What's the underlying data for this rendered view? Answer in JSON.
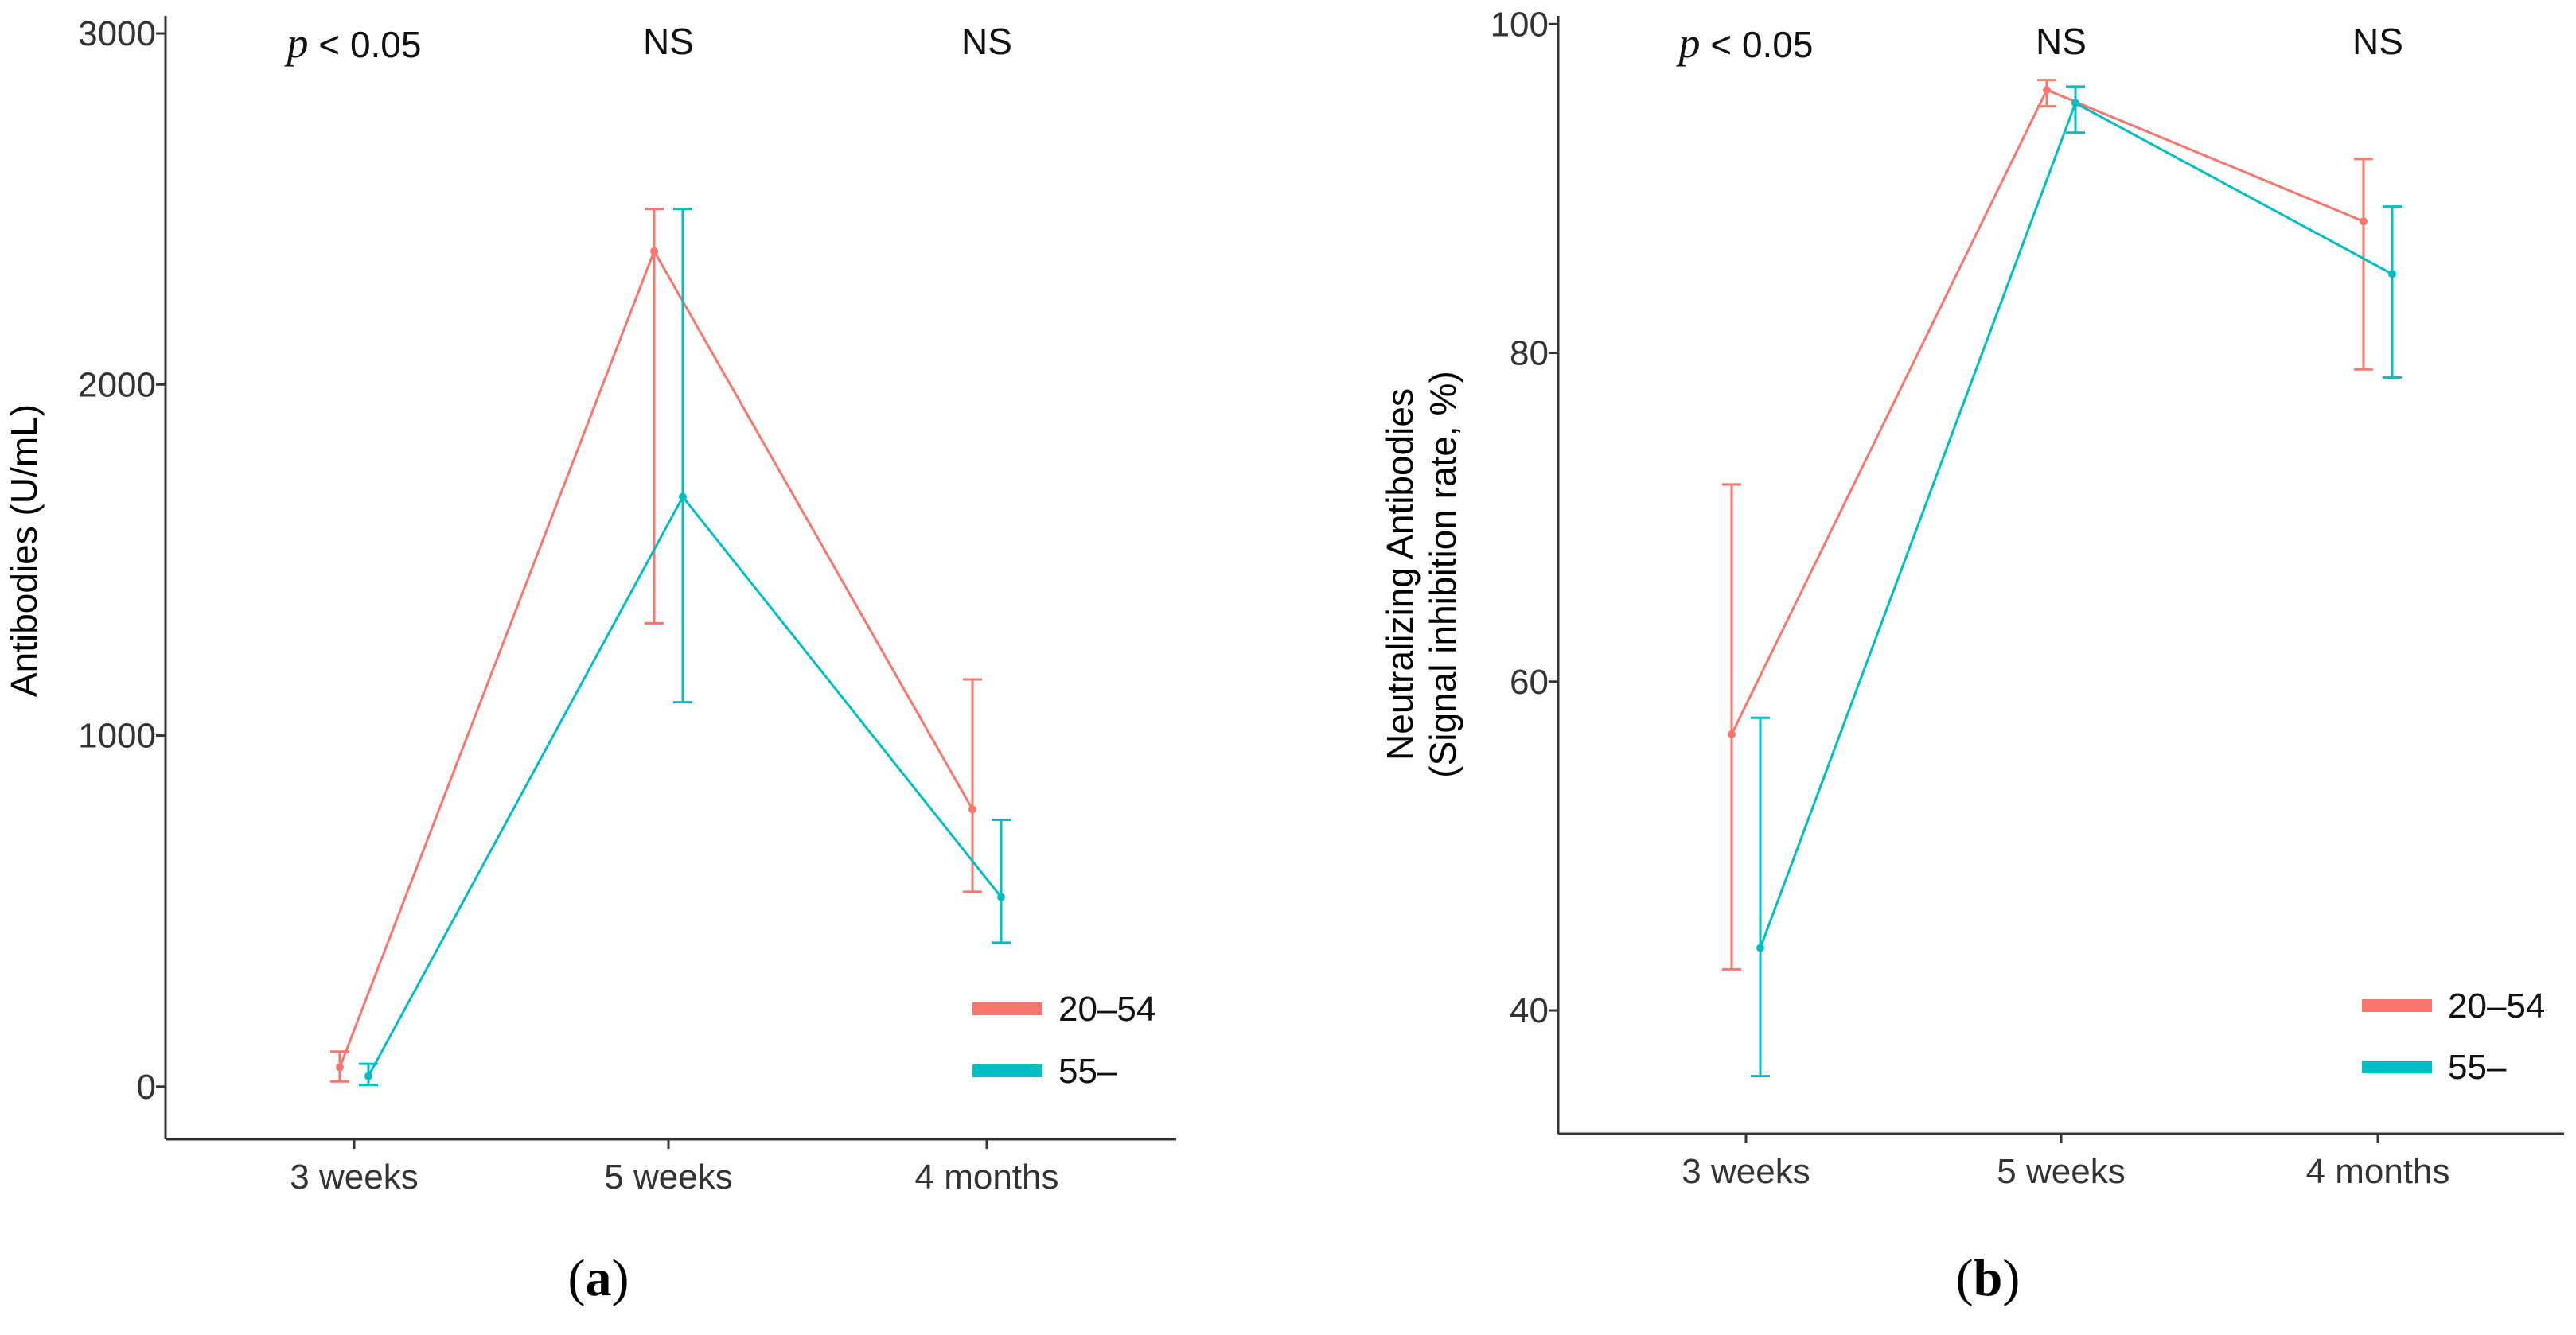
{
  "chart_data": [
    {
      "type": "line",
      "panel_label": "a",
      "title": "",
      "xlabel": "",
      "ylabel": "Antibodies (U/mL)",
      "categories": [
        "3 weeks",
        "5 weeks",
        "4 months"
      ],
      "ylim": [
        -150,
        3050
      ],
      "yticks": [
        0,
        1000,
        2000,
        3000
      ],
      "tick_labels": [
        "0",
        "1000",
        "2000",
        "3000"
      ],
      "grid": false,
      "legend_position": "bottom-right",
      "annotations": [
        {
          "category": "3 weeks",
          "p": "p",
          "rest": " < 0.05"
        },
        {
          "category": "5 weeks",
          "text": "NS"
        },
        {
          "category": "4 months",
          "text": "NS"
        }
      ],
      "series": [
        {
          "name": "20–54",
          "color": "#F8766D",
          "offset": -1,
          "values": [
            55,
            2380,
            790
          ],
          "lower": [
            15,
            1320,
            555
          ],
          "upper": [
            100,
            2500,
            1160
          ]
        },
        {
          "name": "55–",
          "color": "#00BFC4",
          "offset": 1,
          "values": [
            30,
            1680,
            540
          ],
          "lower": [
            5,
            1095,
            410
          ],
          "upper": [
            65,
            2500,
            760
          ]
        }
      ]
    },
    {
      "type": "line",
      "panel_label": "b",
      "title": "",
      "xlabel": "",
      "ylabel": "Neutralizing Antibodies",
      "ylabel2": "(Signal inhibition rate, %)",
      "categories": [
        "3 weeks",
        "5 weeks",
        "4 months"
      ],
      "ylim": [
        32.5,
        100.5
      ],
      "yticks": [
        40,
        60,
        80,
        100
      ],
      "tick_labels": [
        "40",
        "60",
        "80",
        "100"
      ],
      "grid": false,
      "legend_position": "bottom-right",
      "annotations": [
        {
          "category": "3 weeks",
          "p": "p",
          "rest": " < 0.05"
        },
        {
          "category": "5 weeks",
          "text": "NS"
        },
        {
          "category": "4 months",
          "text": "NS"
        }
      ],
      "series": [
        {
          "name": "20–54",
          "color": "#F8766D",
          "offset": -1,
          "values": [
            56.8,
            96.0,
            88.0
          ],
          "lower": [
            42.5,
            95.0,
            79.0
          ],
          "upper": [
            72.0,
            96.6,
            91.8
          ]
        },
        {
          "name": "55–",
          "color": "#00BFC4",
          "offset": 1,
          "values": [
            43.8,
            95.2,
            84.8
          ],
          "lower": [
            36.0,
            93.4,
            78.5
          ],
          "upper": [
            57.8,
            96.2,
            88.9
          ]
        }
      ]
    }
  ]
}
